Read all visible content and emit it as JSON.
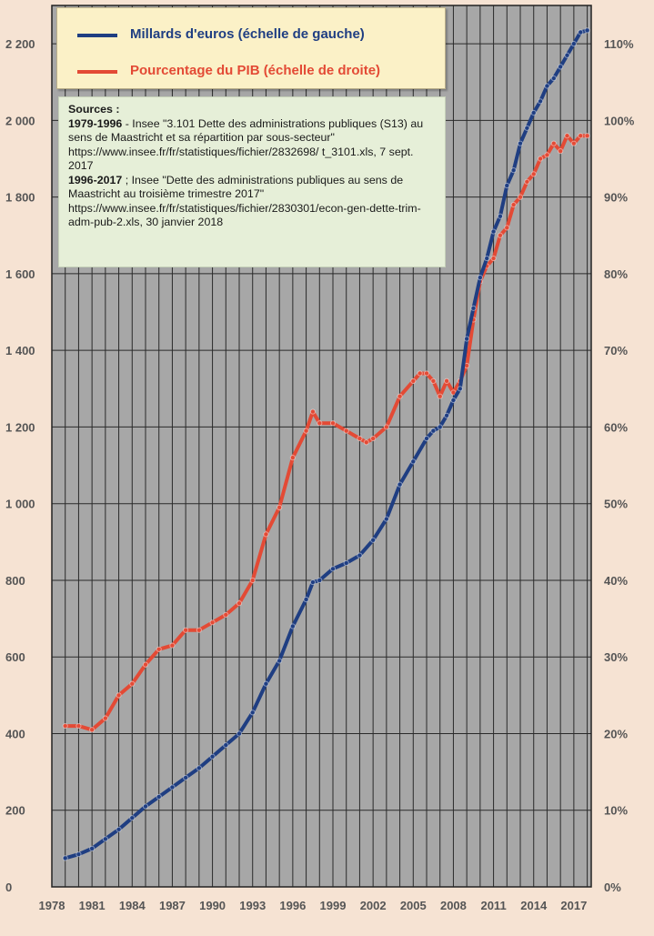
{
  "chart_data": {
    "type": "line",
    "legend_placement": "top-left",
    "grid": true,
    "x_tick_labels": [
      "1978",
      "1981",
      "1984",
      "1987",
      "1990",
      "1993",
      "1996",
      "1999",
      "2002",
      "2005",
      "2008",
      "2011",
      "2014",
      "2017"
    ],
    "y_left_tick_labels": [
      "0",
      "200",
      "400",
      "600",
      "800",
      "1 000",
      "1 200",
      "1 400",
      "1 600",
      "1 800",
      "2 000",
      "2 200"
    ],
    "y_right_tick_labels": [
      "0%",
      "10%",
      "20%",
      "30%",
      "40%",
      "50%",
      "60%",
      "70%",
      "80%",
      "90%",
      "100%",
      "110%"
    ],
    "y_left_range": [
      0,
      2300
    ],
    "y_right_range": [
      0,
      115
    ],
    "x_range": [
      1978,
      2018.3
    ],
    "series": [
      {
        "name": "Millards d'euros (échelle de gauche)",
        "axis": "left",
        "color": "#1f3e82",
        "x": [
          1979,
          1980,
          1981,
          1982,
          1983,
          1984,
          1985,
          1986,
          1987,
          1988,
          1989,
          1990,
          1991,
          1992,
          1993,
          1994,
          1995,
          1996,
          1997,
          1997.5,
          1998,
          1999,
          2000,
          2001,
          2002,
          2003,
          2004,
          2005,
          2006,
          2006.5,
          2007,
          2007.5,
          2008,
          2008.5,
          2009,
          2009.5,
          2010,
          2010.5,
          2011,
          2011.5,
          2012,
          2012.5,
          2013,
          2013.5,
          2014,
          2014.5,
          2015,
          2015.5,
          2016,
          2016.5,
          2017,
          2017.5,
          2018
        ],
        "values": [
          75,
          85,
          100,
          125,
          150,
          180,
          210,
          235,
          260,
          285,
          310,
          340,
          370,
          400,
          455,
          530,
          590,
          680,
          750,
          795,
          800,
          830,
          845,
          865,
          905,
          960,
          1050,
          1110,
          1170,
          1190,
          1200,
          1230,
          1270,
          1300,
          1430,
          1510,
          1590,
          1640,
          1710,
          1750,
          1830,
          1870,
          1940,
          1980,
          2020,
          2050,
          2090,
          2110,
          2140,
          2170,
          2200,
          2230,
          2235
        ]
      },
      {
        "name": "Pourcentage du PIB (échelle de droite)",
        "axis": "right",
        "color": "#e34a35",
        "x": [
          1979,
          1980,
          1981,
          1982,
          1983,
          1984,
          1985,
          1986,
          1987,
          1988,
          1989,
          1990,
          1991,
          1992,
          1993,
          1994,
          1995,
          1996,
          1997,
          1997.5,
          1998,
          1999,
          2000,
          2001,
          2001.5,
          2002,
          2003,
          2004,
          2005,
          2005.5,
          2006,
          2006.5,
          2007,
          2007.5,
          2008,
          2008.5,
          2009,
          2009.5,
          2010,
          2010.5,
          2011,
          2011.5,
          2012,
          2012.5,
          2013,
          2013.5,
          2014,
          2014.5,
          2015,
          2015.5,
          2016,
          2016.5,
          2017,
          2017.5,
          2018
        ],
        "values": [
          21,
          21,
          20.5,
          22,
          25,
          26.5,
          29,
          31,
          31.5,
          33.5,
          33.5,
          34.5,
          35.5,
          37,
          40,
          46,
          49.5,
          56,
          59.5,
          62,
          60.5,
          60.5,
          59.5,
          58.5,
          58,
          58.5,
          60,
          64,
          66,
          67,
          67,
          66,
          64,
          66,
          64.5,
          66,
          68,
          74,
          79,
          81,
          82,
          85,
          86,
          89,
          90,
          92,
          93,
          95,
          95.5,
          97,
          96,
          98,
          97,
          98,
          98
        ]
      }
    ]
  },
  "legend": {
    "items": [
      {
        "label": "Millards d'euros (échelle de gauche)",
        "color": "#1f3e82"
      },
      {
        "label": "Pourcentage du PIB (échelle de droite)",
        "color": "#e34a35"
      }
    ]
  },
  "sources": {
    "title": "Sources :",
    "entry1_period": "1979-1996",
    "entry1_text": " - Insee \"3.101 Dette des administrations publiques (S13) au sens de Maastricht et sa répartition par sous-secteur\" https://www.insee.fr/fr/statistiques/fichier/2832698/ t_3101.xls, 7 sept. 2017",
    "entry2_period": "1996-2017",
    "entry2_text": " ; Insee \"Dette des administrations publiques au sens de Maastricht au troisième trimestre 2017\" https://www.insee.fr/fr/statistiques/fichier/2830301/econ-gen-dette-trim-adm-pub-2.xls, 30 janvier 2018"
  },
  "colors": {
    "plot_background": "#a7a7a7",
    "page_background": "#f6e3d3",
    "grid": "#2a2a2a"
  }
}
